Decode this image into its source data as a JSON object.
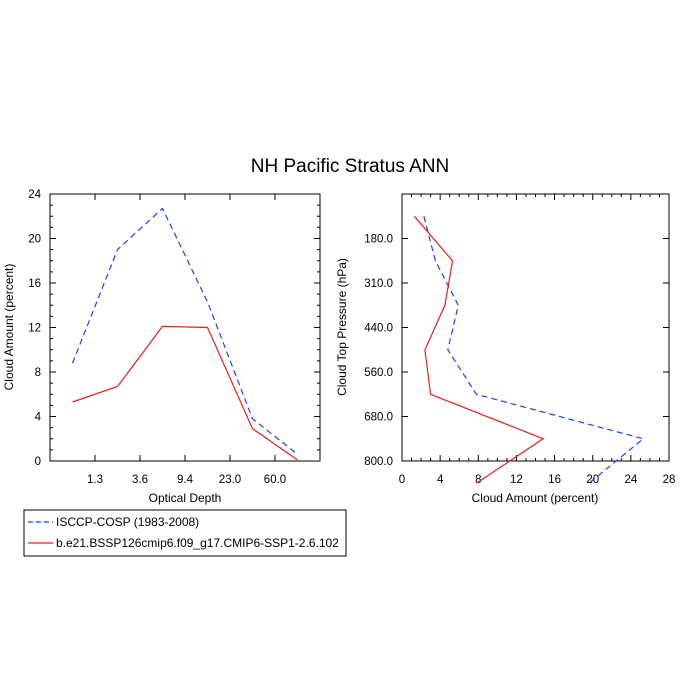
{
  "title": "NH Pacific Stratus ANN",
  "colors": {
    "obs": "#1f3fff",
    "model": "#e8201e",
    "axis": "#000000"
  },
  "legend": {
    "entries": [
      {
        "label": "ISCCP-COSP (1983-2008)",
        "color": "#1f3fff",
        "style": "dashed"
      },
      {
        "label": "b.e21.BSSP126cmip6.f09_g17.CMIP6-SSP1-2.6.102",
        "color": "#e8201e",
        "style": "solid"
      }
    ]
  },
  "chart_data": [
    {
      "type": "line",
      "xlabel": "Optical Depth",
      "ylabel": "Cloud Amount (percent)",
      "x_tick_labels": [
        "1.3",
        "3.6",
        "9.4",
        "23.0",
        "60.0"
      ],
      "x_bins": [
        1,
        2,
        3,
        4,
        5,
        6,
        7
      ],
      "ylim": [
        0,
        24
      ],
      "y_ticks": [
        "0",
        "4",
        "8",
        "12",
        "16",
        "20",
        "24"
      ],
      "series": [
        {
          "name": "ISCCP-COSP (1983-2008)",
          "style": "dashed",
          "color": "#1f3fff",
          "values": [
            8.8,
            19.0,
            22.7,
            14.3,
            3.8,
            0.6
          ]
        },
        {
          "name": "b.e21.BSSP126cmip6.f09_g17.CMIP6-SSP1-2.6.102",
          "style": "solid",
          "color": "#e8201e",
          "values": [
            5.3,
            6.7,
            12.1,
            12.0,
            2.9,
            0.1
          ]
        }
      ]
    },
    {
      "type": "line",
      "xlabel": "Cloud Amount (percent)",
      "ylabel": "Cloud Top Pressure (hPa)",
      "xlim": [
        0,
        28
      ],
      "x_ticks": [
        "0",
        "4",
        "8",
        "12",
        "16",
        "20",
        "24",
        "28"
      ],
      "y_tick_labels": [
        "180.0",
        "310.0",
        "440.0",
        "560.0",
        "680.0",
        "800.0"
      ],
      "y_bins": [
        1,
        2,
        3,
        4,
        5,
        6,
        7
      ],
      "series": [
        {
          "name": "ISCCP-COSP (1983-2008)",
          "style": "dashed",
          "color": "#1f3fff",
          "values": [
            2.3,
            3.5,
            5.9,
            4.8,
            7.8,
            25.3,
            19.6
          ]
        },
        {
          "name": "b.e21.BSSP126cmip6.f09_g17.CMIP6-SSP1-2.6.102",
          "style": "solid",
          "color": "#e8201e",
          "values": [
            1.3,
            5.3,
            4.5,
            2.4,
            3.0,
            14.8,
            7.8
          ]
        }
      ]
    }
  ]
}
